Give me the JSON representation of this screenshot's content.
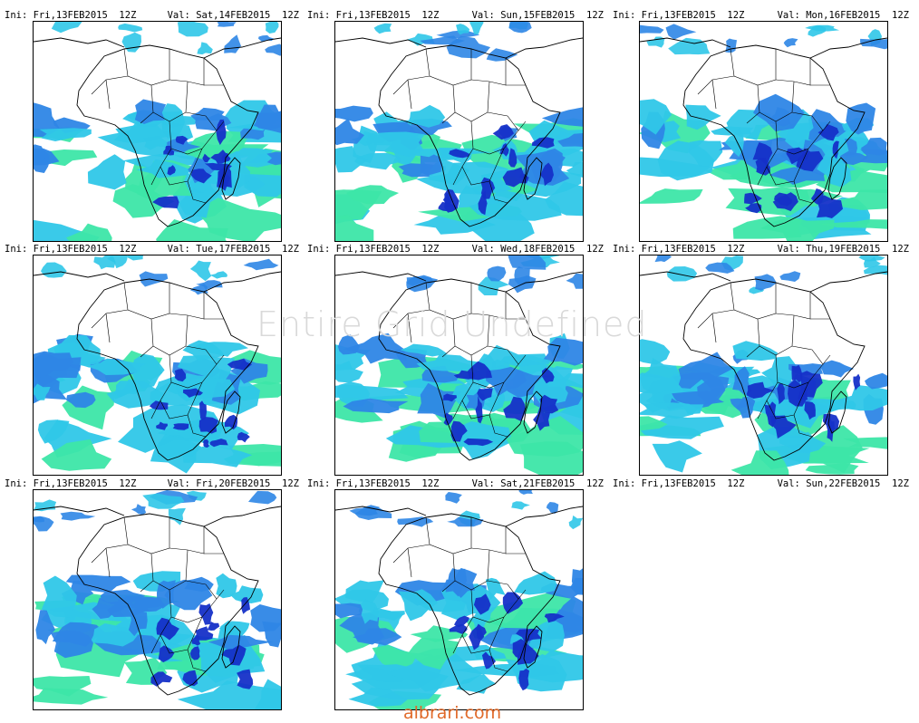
{
  "panels": [
    {
      "ini": "Ini: Fri,13FEB2015  12Z",
      "val": "Val: Sat,14FEB2015  12Z"
    },
    {
      "ini": "Ini: Fri,13FEB2015  12Z",
      "val": "Val: Sun,15FEB2015  12Z"
    },
    {
      "ini": "Ini: Fri,13FEB2015  12Z",
      "val": "Val: Mon,16FEB2015  12Z"
    },
    {
      "ini": "Ini: Fri,13FEB2015  12Z",
      "val": "Val: Tue,17FEB2015  12Z"
    },
    {
      "ini": "Ini: Fri,13FEB2015  12Z",
      "val": "Val: Wed,18FEB2015  12Z"
    },
    {
      "ini": "Ini: Fri,13FEB2015  12Z",
      "val": "Val: Thu,19FEB2015  12Z"
    },
    {
      "ini": "Ini: Fri,13FEB2015  12Z",
      "val": "Val: Fri,20FEB2015  12Z"
    },
    {
      "ini": "Ini: Fri,13FEB2015  12Z",
      "val": "Val: Sat,21FEB2015  12Z"
    },
    {
      "ini": "Ini: Fri,13FEB2015  12Z",
      "val": "Val: Sun,22FEB2015  12Z"
    }
  ],
  "overlay_text": "Entire Grid Undefined",
  "watermark": "albrari.com",
  "colors": {
    "light": "#3de6a8",
    "cyan": "#2fc7e8",
    "mid": "#2e86e6",
    "dark": "#1530c8",
    "outline": "#000000"
  }
}
